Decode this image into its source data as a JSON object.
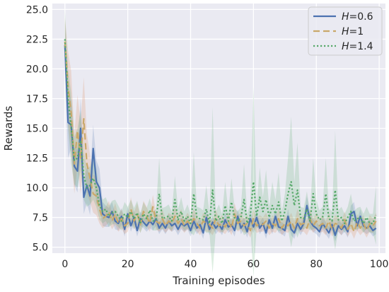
{
  "chart_data": {
    "type": "line",
    "title": "",
    "xlabel": "Training episodes",
    "ylabel": "Rewards",
    "xlim": [
      -4,
      102
    ],
    "ylim": [
      4.5,
      25.5
    ],
    "x_ticks": [
      0,
      20,
      40,
      60,
      80,
      100
    ],
    "y_ticks": [
      5.0,
      7.5,
      10.0,
      12.5,
      15.0,
      17.5,
      20.0,
      22.5,
      25.0
    ],
    "grid": true,
    "legend_position": "upper-right",
    "background": "#eaeaf2",
    "series": [
      {
        "name": "H=0.6",
        "label_var": "H",
        "label_value": "=0.6",
        "color": "#4c72b0",
        "style": "solid",
        "band_color": "#4c72b0",
        "x": [
          0,
          1,
          2,
          3,
          4,
          5,
          6,
          7,
          8,
          9,
          10,
          11,
          12,
          13,
          14,
          15,
          16,
          17,
          18,
          19,
          20,
          21,
          22,
          23,
          24,
          25,
          26,
          27,
          28,
          29,
          30,
          31,
          32,
          33,
          34,
          35,
          36,
          37,
          38,
          39,
          40,
          41,
          42,
          43,
          44,
          45,
          46,
          47,
          48,
          49,
          50,
          51,
          52,
          53,
          54,
          55,
          56,
          57,
          58,
          59,
          60,
          61,
          62,
          63,
          64,
          65,
          66,
          67,
          68,
          69,
          70,
          71,
          72,
          73,
          74,
          75,
          76,
          77,
          78,
          79,
          80,
          81,
          82,
          83,
          84,
          85,
          86,
          87,
          88,
          89,
          90,
          91,
          92,
          93,
          94,
          95,
          96,
          97,
          98,
          99
        ],
        "y": [
          22.0,
          15.5,
          15.3,
          11.8,
          11.4,
          15.0,
          9.2,
          10.2,
          9.3,
          13.3,
          10.5,
          10.0,
          7.8,
          7.6,
          7.5,
          8.0,
          7.2,
          7.0,
          7.6,
          6.5,
          7.8,
          6.8,
          7.5,
          6.4,
          7.4,
          7.1,
          6.8,
          7.2,
          6.9,
          7.4,
          6.6,
          7.0,
          6.6,
          7.2,
          6.8,
          7.0,
          6.5,
          7.0,
          6.8,
          7.0,
          6.4,
          7.2,
          6.6,
          6.9,
          6.2,
          7.5,
          6.5,
          7.1,
          6.6,
          6.9,
          6.5,
          7.3,
          6.7,
          6.9,
          6.4,
          7.6,
          6.6,
          7.0,
          6.3,
          7.4,
          6.7,
          7.5,
          6.6,
          7.0,
          6.2,
          7.3,
          6.6,
          7.6,
          6.7,
          6.6,
          6.4,
          7.6,
          6.5,
          6.2,
          7.0,
          6.5,
          7.0,
          8.5,
          7.2,
          6.8,
          6.6,
          6.3,
          7.0,
          6.6,
          6.2,
          6.9,
          6.0,
          6.8,
          6.5,
          6.8,
          6.3,
          7.8,
          8.0,
          6.8,
          7.6,
          6.8,
          6.6,
          6.8,
          6.4,
          6.6
        ],
        "band_halfwidth": [
          2.0,
          3.0,
          2.0,
          1.6,
          1.8,
          2.5,
          1.4,
          1.5,
          1.6,
          2.0,
          1.8,
          1.6,
          1.0,
          0.9,
          0.8,
          0.8,
          0.7,
          0.6,
          0.7,
          0.6,
          0.6,
          0.5,
          0.6,
          0.5,
          0.6,
          0.5,
          0.5,
          0.6,
          0.5,
          0.6,
          0.5,
          0.5,
          0.5,
          0.6,
          0.5,
          0.5,
          0.5,
          0.5,
          0.5,
          0.5,
          0.5,
          0.6,
          0.5,
          0.5,
          0.5,
          0.6,
          0.5,
          0.5,
          0.5,
          0.5,
          0.5,
          0.6,
          0.5,
          0.5,
          0.5,
          0.6,
          0.5,
          0.5,
          0.5,
          0.6,
          0.5,
          0.6,
          0.5,
          0.5,
          0.5,
          0.6,
          0.5,
          0.6,
          0.5,
          0.5,
          0.5,
          0.6,
          0.5,
          0.5,
          0.5,
          0.5,
          0.5,
          0.8,
          0.6,
          0.5,
          0.5,
          0.5,
          0.5,
          0.5,
          0.5,
          0.5,
          0.5,
          0.5,
          0.5,
          0.5,
          0.5,
          0.7,
          0.8,
          0.5,
          0.6,
          0.5,
          0.5,
          0.5,
          0.5,
          0.5
        ]
      },
      {
        "name": "H=1",
        "label_var": "H",
        "label_value": "=1",
        "color": "#c9a86a",
        "style": "dashed",
        "band_color": "#dd8452",
        "x": [
          0,
          1,
          2,
          3,
          4,
          5,
          6,
          7,
          8,
          9,
          10,
          11,
          12,
          13,
          14,
          15,
          16,
          17,
          18,
          19,
          20,
          21,
          22,
          23,
          24,
          25,
          26,
          27,
          28,
          29,
          30,
          31,
          32,
          33,
          34,
          35,
          36,
          37,
          38,
          39,
          40,
          41,
          42,
          43,
          44,
          45,
          46,
          47,
          48,
          49,
          50,
          51,
          52,
          53,
          54,
          55,
          56,
          57,
          58,
          59,
          60,
          61,
          62,
          63,
          64,
          65,
          66,
          67,
          68,
          69,
          70,
          71,
          72,
          73,
          74,
          75,
          76,
          77,
          78,
          79,
          80,
          81,
          82,
          83,
          84,
          85,
          86,
          87,
          88,
          89,
          90,
          91,
          92,
          93,
          94,
          95,
          96,
          97,
          98,
          99
        ],
        "y": [
          22.3,
          18.5,
          16.3,
          12.0,
          14.8,
          12.5,
          15.8,
          12.0,
          10.8,
          9.5,
          9.3,
          8.2,
          7.4,
          7.6,
          8.0,
          7.2,
          7.8,
          7.0,
          7.4,
          6.8,
          7.0,
          8.2,
          7.2,
          7.8,
          6.9,
          8.0,
          7.6,
          7.0,
          8.4,
          7.2,
          7.0,
          7.4,
          6.8,
          7.2,
          7.0,
          7.6,
          7.0,
          7.4,
          6.8,
          7.2,
          6.9,
          7.4,
          7.0,
          6.6,
          7.2,
          7.0,
          6.9,
          6.6,
          7.4,
          6.8,
          7.0,
          6.7,
          7.2,
          6.6,
          7.8,
          7.0,
          7.2,
          6.8,
          7.0,
          6.4,
          7.4,
          6.8,
          7.0,
          6.9,
          7.2,
          6.6,
          7.0,
          6.8,
          7.4,
          6.6,
          7.0,
          6.8,
          7.2,
          6.6,
          7.4,
          6.9,
          7.0,
          6.6,
          7.4,
          6.8,
          7.2,
          6.8,
          7.0,
          6.6,
          7.2,
          6.5,
          7.0,
          6.9,
          6.6,
          7.3,
          6.5,
          7.0,
          6.3,
          7.1,
          6.6,
          7.0,
          6.4,
          7.0,
          6.8,
          7.2
        ],
        "band_halfwidth": [
          2.0,
          3.0,
          3.5,
          2.5,
          3.0,
          3.0,
          3.5,
          2.5,
          2.0,
          1.6,
          1.6,
          1.2,
          0.8,
          0.8,
          0.9,
          0.7,
          0.9,
          0.7,
          0.8,
          0.7,
          0.7,
          1.0,
          0.7,
          0.9,
          0.7,
          0.9,
          0.8,
          0.7,
          1.0,
          0.7,
          0.7,
          0.8,
          0.6,
          0.7,
          0.7,
          0.8,
          0.7,
          0.8,
          0.6,
          0.7,
          0.6,
          0.8,
          0.7,
          0.6,
          0.7,
          0.7,
          0.6,
          0.6,
          0.8,
          0.6,
          0.7,
          0.6,
          0.7,
          0.6,
          0.9,
          0.7,
          0.7,
          0.6,
          0.7,
          0.6,
          0.8,
          0.6,
          0.7,
          0.6,
          0.7,
          0.6,
          0.7,
          0.6,
          0.8,
          0.6,
          0.7,
          0.6,
          0.7,
          0.6,
          0.8,
          0.6,
          0.7,
          0.6,
          0.8,
          0.6,
          0.7,
          0.6,
          0.7,
          0.6,
          0.7,
          0.6,
          0.7,
          0.6,
          0.6,
          0.7,
          0.6,
          0.7,
          0.6,
          0.7,
          0.6,
          0.7,
          0.6,
          0.7,
          0.6,
          0.7
        ]
      },
      {
        "name": "H=1.4",
        "label_var": "H",
        "label_value": "=1.4",
        "color": "#55a868",
        "style": "dotted",
        "band_color": "#55a868",
        "x": [
          0,
          1,
          2,
          3,
          4,
          5,
          6,
          7,
          8,
          9,
          10,
          11,
          12,
          13,
          14,
          15,
          16,
          17,
          18,
          19,
          20,
          21,
          22,
          23,
          24,
          25,
          26,
          27,
          28,
          29,
          30,
          31,
          32,
          33,
          34,
          35,
          36,
          37,
          38,
          39,
          40,
          41,
          42,
          43,
          44,
          45,
          46,
          47,
          48,
          49,
          50,
          51,
          52,
          53,
          54,
          55,
          56,
          57,
          58,
          59,
          60,
          61,
          62,
          63,
          64,
          65,
          66,
          67,
          68,
          69,
          70,
          71,
          72,
          73,
          74,
          75,
          76,
          77,
          78,
          79,
          80,
          81,
          82,
          83,
          84,
          85,
          86,
          87,
          88,
          89,
          90,
          91,
          92,
          93,
          94,
          95,
          96,
          97,
          98,
          99
        ],
        "y": [
          22.5,
          17.5,
          15.0,
          12.3,
          12.5,
          14.0,
          11.0,
          10.0,
          10.2,
          10.8,
          10.0,
          8.5,
          8.0,
          8.2,
          7.6,
          7.9,
          8.0,
          7.6,
          7.2,
          7.8,
          7.5,
          8.0,
          7.4,
          7.9,
          7.0,
          7.8,
          7.4,
          8.1,
          7.2,
          7.3,
          9.5,
          7.4,
          7.5,
          7.6,
          7.2,
          9.0,
          7.3,
          8.0,
          7.2,
          7.6,
          7.0,
          9.5,
          7.5,
          7.4,
          7.3,
          8.2,
          7.0,
          9.8,
          7.2,
          7.6,
          7.0,
          8.5,
          7.2,
          8.8,
          7.4,
          7.2,
          7.5,
          9.0,
          7.0,
          7.7,
          10.5,
          7.6,
          9.2,
          8.0,
          9.0,
          7.5,
          8.5,
          7.8,
          8.8,
          7.2,
          8.0,
          9.5,
          10.5,
          8.5,
          9.8,
          7.5,
          7.4,
          8.2,
          7.2,
          9.5,
          7.8,
          7.3,
          7.5,
          9.5,
          7.4,
          7.2,
          9.8,
          7.3,
          7.5,
          7.0,
          7.5,
          8.0,
          7.2,
          7.4,
          7.5,
          7.0,
          7.5,
          7.0,
          7.0,
          7.7
        ],
        "band_halfwidth": [
          2.5,
          2.5,
          3.0,
          2.0,
          2.5,
          2.5,
          2.0,
          1.6,
          1.6,
          1.8,
          1.6,
          1.2,
          1.0,
          1.0,
          0.9,
          1.0,
          1.0,
          0.9,
          0.8,
          1.0,
          0.9,
          1.0,
          0.9,
          1.0,
          0.8,
          1.0,
          0.9,
          1.0,
          0.8,
          0.9,
          3.0,
          0.9,
          0.9,
          1.0,
          0.8,
          2.0,
          0.9,
          1.2,
          0.8,
          1.0,
          0.8,
          3.5,
          0.9,
          0.9,
          0.8,
          2.0,
          0.8,
          7.0,
          0.8,
          1.0,
          0.8,
          2.0,
          0.8,
          2.0,
          0.9,
          0.8,
          0.9,
          3.0,
          0.8,
          1.0,
          8.0,
          1.0,
          2.5,
          1.2,
          2.5,
          0.9,
          2.0,
          1.2,
          2.5,
          0.8,
          1.5,
          3.0,
          5.5,
          2.0,
          4.0,
          0.9,
          0.9,
          1.5,
          0.8,
          3.0,
          1.2,
          0.8,
          0.9,
          3.0,
          0.9,
          0.8,
          5.0,
          0.8,
          0.9,
          0.8,
          0.9,
          1.5,
          0.8,
          0.9,
          0.9,
          0.8,
          0.9,
          0.8,
          0.8,
          2.5
        ]
      }
    ]
  }
}
